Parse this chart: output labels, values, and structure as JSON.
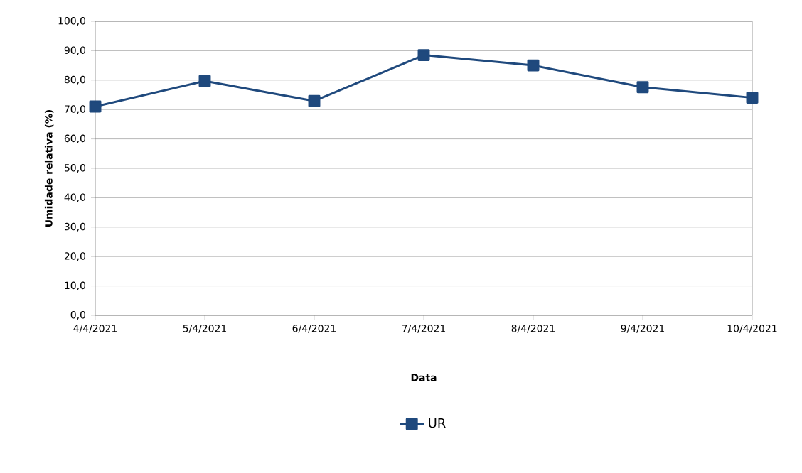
{
  "chart_data": {
    "type": "line",
    "xlabel": "Data",
    "ylabel": "Umidade relativa (%)",
    "categories": [
      "4/4/2021",
      "5/4/2021",
      "6/4/2021",
      "7/4/2021",
      "8/4/2021",
      "9/4/2021",
      "10/4/2021"
    ],
    "series": [
      {
        "name": "UR",
        "color": "#1f497d",
        "values": [
          71.0,
          79.7,
          72.9,
          88.5,
          85.0,
          77.6,
          74.0
        ]
      }
    ],
    "ylim": [
      0,
      100
    ],
    "yticks": [
      {
        "value": 0,
        "label": "0,0"
      },
      {
        "value": 10,
        "label": "10,0"
      },
      {
        "value": 20,
        "label": "20,0"
      },
      {
        "value": 30,
        "label": "30,0"
      },
      {
        "value": 40,
        "label": "40,0"
      },
      {
        "value": 50,
        "label": "50,0"
      },
      {
        "value": 60,
        "label": "60,0"
      },
      {
        "value": 70,
        "label": "70,0"
      },
      {
        "value": 80,
        "label": "80,0"
      },
      {
        "value": 90,
        "label": "90,0"
      },
      {
        "value": 100,
        "label": "100,0"
      }
    ],
    "grid": "y",
    "legend": "bottom",
    "marker": "square",
    "line_style": "solid"
  }
}
